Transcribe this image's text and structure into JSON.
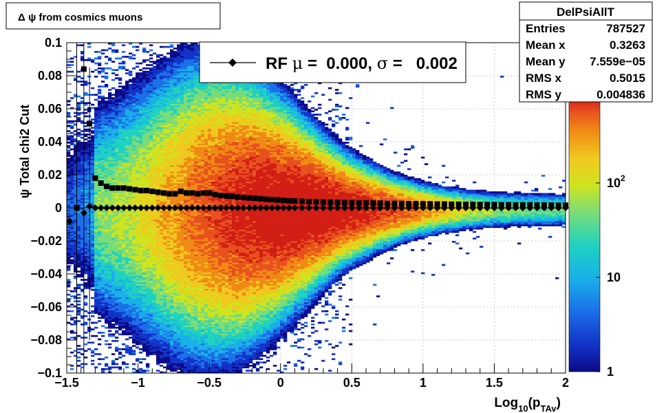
{
  "canvas_title": "Δ ψ from cosmics muons",
  "stats": {
    "name": "DelPsiAllT",
    "rows": [
      {
        "label": "Entries",
        "value": "787527"
      },
      {
        "label": "Mean x",
        "value": "0.3263"
      },
      {
        "label": "Mean y",
        "value": "7.559e−05"
      },
      {
        "label": "RMS x",
        "value": "0.5015"
      },
      {
        "label": "RMS y",
        "value": "0.004836"
      }
    ]
  },
  "legend": {
    "prefix": "RF",
    "mu_symbol": "μ",
    "mu_text": " =  0.000, ",
    "sigma_symbol": "σ",
    "sigma_text": " =   0.002"
  },
  "colors": {
    "frame": "#000000",
    "grid": "#c8c8c8",
    "markers": "#000000",
    "palette": [
      "#0c0a88",
      "#1233c8",
      "#1b70e8",
      "#19b0e8",
      "#1ed2c0",
      "#79dc79",
      "#cfe41e",
      "#f0c81e",
      "#f08a14",
      "#e8501e",
      "#d21e14"
    ]
  },
  "chart_data": {
    "type": "heatmap",
    "xlabel": "Log10(pTAv)",
    "ylabel": "ψ  Total chi2 Cut",
    "xlim": [
      -1.5,
      2
    ],
    "ylim": [
      -0.1,
      0.1
    ],
    "x_ticks": [
      "−1.5",
      "−1",
      "−0.5",
      "0",
      "0.5",
      "1",
      "1.5",
      "2"
    ],
    "y_ticks": [
      "−0.1",
      "−0.08",
      "−0.06",
      "−0.04",
      "−0.02",
      "0",
      "0.02",
      "0.04",
      "0.06",
      "0.08",
      "0.1"
    ],
    "z_scale": "log",
    "z_range": [
      1,
      800
    ],
    "z_ticks": [
      "1",
      "10",
      "10²"
    ],
    "grid": true,
    "series": [
      {
        "marker": "square",
        "x": [
          -1.43,
          -1.38,
          -1.34,
          -1.3,
          -1.26,
          -1.22,
          -1.18,
          -1.14,
          -1.1,
          -1.06,
          -1.02,
          -0.98,
          -0.94,
          -0.9,
          -0.86,
          -0.82,
          -0.78,
          -0.74,
          -0.7,
          -0.66,
          -0.62,
          -0.58,
          -0.54,
          -0.5,
          -0.46,
          -0.42,
          -0.38,
          -0.34,
          -0.3,
          -0.26,
          -0.22,
          -0.18,
          -0.14,
          -0.1,
          -0.06,
          -0.02,
          0.02,
          0.06,
          0.1,
          0.15,
          0.2,
          0.25,
          0.3,
          0.35,
          0.4,
          0.45,
          0.5,
          0.55,
          0.6,
          0.65,
          0.7,
          0.75,
          0.8,
          0.85,
          0.9,
          0.95,
          1.0,
          1.05,
          1.1,
          1.15,
          1.2,
          1.25,
          1.3,
          1.35,
          1.4,
          1.45,
          1.5,
          1.55,
          1.6,
          1.65,
          1.7,
          1.75,
          1.8,
          1.85,
          1.9,
          1.95,
          2.0
        ],
        "y": [
          0.0,
          0.084,
          0.051,
          0.018,
          0.015,
          0.013,
          0.012,
          0.012,
          0.012,
          0.0115,
          0.011,
          0.0105,
          0.0105,
          0.01,
          0.0095,
          0.009,
          0.0085,
          0.0085,
          0.01,
          0.009,
          0.009,
          0.0085,
          0.009,
          0.009,
          0.008,
          0.0075,
          0.0072,
          0.007,
          0.0065,
          0.0062,
          0.006,
          0.0058,
          0.0055,
          0.0052,
          0.005,
          0.0048,
          0.0045,
          0.0043,
          0.0042,
          0.004,
          0.0038,
          0.0037,
          0.0035,
          0.0034,
          0.0033,
          0.0032,
          0.0031,
          0.003,
          0.003,
          0.0029,
          0.0028,
          0.0027,
          0.0027,
          0.0026,
          0.0025,
          0.0025,
          0.0024,
          0.0024,
          0.0023,
          0.0023,
          0.0022,
          0.0022,
          0.0021,
          0.0021,
          0.002,
          0.002,
          0.002,
          0.0019,
          0.0019,
          0.0018,
          0.0018,
          0.0018,
          0.0017,
          0.0017,
          0.0017,
          0.0016,
          0.0016
        ]
      },
      {
        "marker": "diamond",
        "x": [
          -1.48,
          -1.43,
          -1.38,
          -1.34,
          -1.3,
          -1.26,
          -1.22,
          -1.18,
          -1.14,
          -1.1,
          -1.06,
          -1.02,
          -0.98,
          -0.94,
          -0.9,
          -0.86,
          -0.82,
          -0.78,
          -0.74,
          -0.7,
          -0.66,
          -0.62,
          -0.58,
          -0.54,
          -0.5,
          -0.46,
          -0.42,
          -0.38,
          -0.34,
          -0.3,
          -0.26,
          -0.22,
          -0.18,
          -0.14,
          -0.1,
          -0.06,
          -0.02,
          0.02,
          0.06,
          0.1,
          0.15,
          0.2,
          0.25,
          0.3,
          0.35,
          0.4,
          0.45,
          0.5,
          0.55,
          0.6,
          0.65,
          0.7,
          0.75,
          0.8,
          0.85,
          0.9,
          0.95,
          1.0,
          1.05,
          1.1,
          1.15,
          1.2,
          1.25,
          1.3,
          1.35,
          1.4,
          1.45,
          1.5,
          1.55,
          1.6,
          1.65,
          1.7,
          1.75,
          1.8,
          1.85,
          1.9,
          1.95,
          2.0
        ],
        "y": [
          -0.008,
          0.0,
          -0.003,
          0.001,
          0.0,
          0.0,
          0.0,
          0.0,
          0.0,
          0.0,
          0.0,
          0.0,
          0.0,
          0.0,
          0.0,
          0.0,
          0.0,
          0.0,
          0.0,
          0.0,
          0.0,
          0.0,
          0.0,
          0.0,
          0.0,
          0.0,
          0.0,
          0.0,
          0.0,
          0.0,
          0.0,
          0.0,
          0.0,
          0.0,
          0.0,
          0.0,
          0.0,
          0.0,
          0.0,
          0.0,
          0.0,
          0.0,
          0.0,
          0.0,
          0.0,
          0.0,
          0.0,
          0.0,
          0.0,
          0.0,
          0.0,
          0.0,
          0.0,
          0.0,
          0.0,
          0.0,
          0.0,
          0.0,
          0.0,
          0.0,
          0.0,
          0.0,
          0.0,
          0.0,
          0.0,
          0.0,
          0.0,
          0.0,
          0.0,
          0.0,
          0.0,
          0.0,
          0.0,
          0.0,
          0.0,
          0.0,
          0.0,
          0.0
        ]
      }
    ]
  }
}
